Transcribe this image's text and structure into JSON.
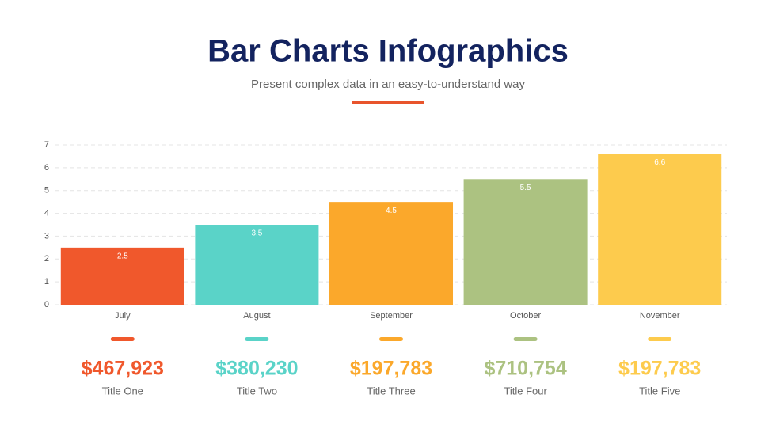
{
  "chart_data": {
    "type": "bar",
    "title": "Bar Charts Infographics",
    "subtitle": "Present complex data in an easy-to-understand way",
    "categories": [
      "July",
      "August",
      "September",
      "October",
      "November"
    ],
    "values": [
      2.5,
      3.5,
      4.5,
      5.5,
      6.6
    ],
    "colors": [
      "#f0582c",
      "#5ad3c8",
      "#fba82b",
      "#acc281",
      "#fdcb4d"
    ],
    "ylim": [
      0,
      7
    ],
    "yticks": [
      0,
      1,
      2,
      3,
      4,
      5,
      6,
      7
    ],
    "grid": true
  },
  "cards": [
    {
      "amount": "$467,923",
      "label": "Title One"
    },
    {
      "amount": "$380,230",
      "label": "Title Two"
    },
    {
      "amount": "$197,783",
      "label": "Title Three"
    },
    {
      "amount": "$710,754",
      "label": "Title Four"
    },
    {
      "amount": "$197,783",
      "label": "Title Five"
    }
  ]
}
